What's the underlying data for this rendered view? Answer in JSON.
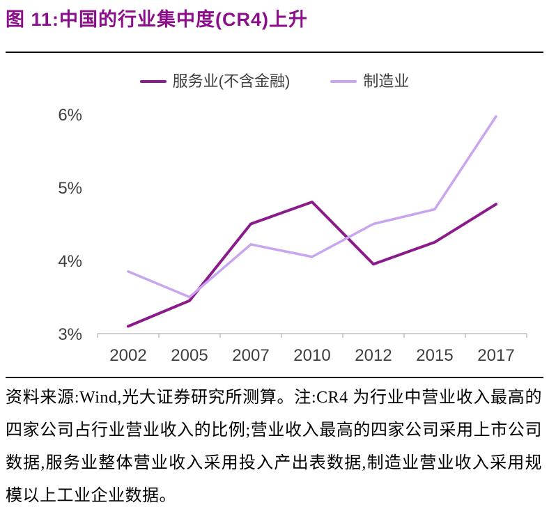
{
  "page": {
    "title": "图 11:中国的行业集中度(CR4)上升"
  },
  "colors": {
    "title": "#8b0f8b",
    "services_line": "#8b1a8b",
    "manufacturing_line": "#c9a5ef",
    "axis": "#c0c0c0",
    "tick_text": "#3f3f3f",
    "rule": "#000000"
  },
  "chart_data": {
    "type": "line",
    "title": "中国的行业集中度(CR4)上升",
    "categories": [
      "2002",
      "2005",
      "2007",
      "2010",
      "2012",
      "2015",
      "2017"
    ],
    "series": [
      {
        "name": "服务业(不含金融)",
        "values": [
          3.1,
          3.45,
          4.5,
          4.8,
          3.95,
          4.25,
          4.77
        ],
        "color": "#8b1a8b"
      },
      {
        "name": "制造业",
        "values": [
          3.85,
          3.5,
          4.22,
          4.05,
          4.5,
          4.7,
          5.97
        ],
        "color": "#c9a5ef"
      }
    ],
    "xlabel": "",
    "ylabel": "",
    "y_ticks": [
      "3%",
      "4%",
      "5%",
      "6%"
    ],
    "y_tick_values": [
      3,
      4,
      5,
      6
    ],
    "ylim": [
      3,
      6.3
    ],
    "unit": "percent",
    "grid": false,
    "legend_position": "top"
  },
  "footer": {
    "source_note": "资料来源:Wind,光大证券研究所测算。注:CR4 为行业中营业收入最高的四家公司占行业营业收入的比例;营业收入最高的四家公司采用上市公司数据,服务业整体营业收入采用投入产出表数据,制造业营业收入采用规模以上工业企业数据。"
  }
}
